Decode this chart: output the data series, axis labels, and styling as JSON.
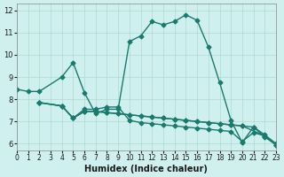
{
  "xlabel": "Humidex (Indice chaleur)",
  "bg_color": "#cff0ee",
  "line_color": "#1a7a6e",
  "grid_color": "#b0d8d4",
  "xlim": [
    0,
    23
  ],
  "ylim": [
    5.7,
    12.3
  ],
  "xticks": [
    0,
    1,
    2,
    3,
    4,
    5,
    6,
    7,
    8,
    9,
    10,
    11,
    12,
    13,
    14,
    15,
    16,
    17,
    18,
    19,
    20,
    21,
    22,
    23
  ],
  "yticks": [
    6,
    7,
    8,
    9,
    10,
    11,
    12
  ],
  "line1_x": [
    0,
    1,
    2,
    4,
    5,
    6,
    7,
    8,
    9,
    10,
    11,
    12,
    13,
    14,
    15,
    16,
    17,
    18,
    19,
    20,
    21,
    22,
    23
  ],
  "line1_y": [
    8.45,
    8.35,
    8.35,
    9.0,
    9.65,
    8.3,
    7.35,
    7.55,
    7.55,
    10.6,
    10.85,
    11.5,
    11.35,
    11.5,
    11.8,
    11.55,
    10.35,
    8.75,
    7.05,
    6.05,
    6.75,
    6.4,
    6.0
  ],
  "line2_x": [
    2,
    4,
    5,
    6,
    7,
    8,
    9,
    10,
    11,
    12,
    13,
    14,
    15,
    16,
    17,
    18,
    19,
    20,
    21,
    22,
    23
  ],
  "line2_y": [
    7.85,
    7.7,
    7.15,
    7.55,
    7.55,
    7.65,
    7.65,
    7.05,
    6.95,
    6.9,
    6.85,
    6.8,
    6.75,
    6.7,
    6.65,
    6.6,
    6.55,
    6.1,
    6.5,
    6.35,
    5.95
  ],
  "line3_x": [
    2,
    4,
    5,
    6,
    7,
    8,
    9,
    10,
    11,
    12,
    13,
    14,
    15,
    16,
    17,
    18,
    19,
    20,
    21,
    22,
    23
  ],
  "line3_y": [
    7.85,
    7.7,
    7.15,
    7.45,
    7.45,
    7.4,
    7.35,
    7.3,
    7.25,
    7.2,
    7.15,
    7.1,
    7.05,
    7.0,
    6.95,
    6.9,
    6.85,
    6.8,
    6.75,
    6.3,
    5.95
  ],
  "line4_x": [
    2,
    4,
    5,
    6,
    7,
    8,
    9,
    10,
    11,
    12,
    13,
    14,
    15,
    16,
    17,
    18,
    19,
    20,
    22,
    23
  ],
  "line4_y": [
    7.85,
    7.7,
    7.15,
    7.45,
    7.45,
    7.4,
    7.35,
    7.3,
    7.25,
    7.2,
    7.15,
    7.1,
    7.05,
    7.0,
    6.95,
    6.9,
    6.85,
    6.8,
    6.35,
    5.95
  ]
}
